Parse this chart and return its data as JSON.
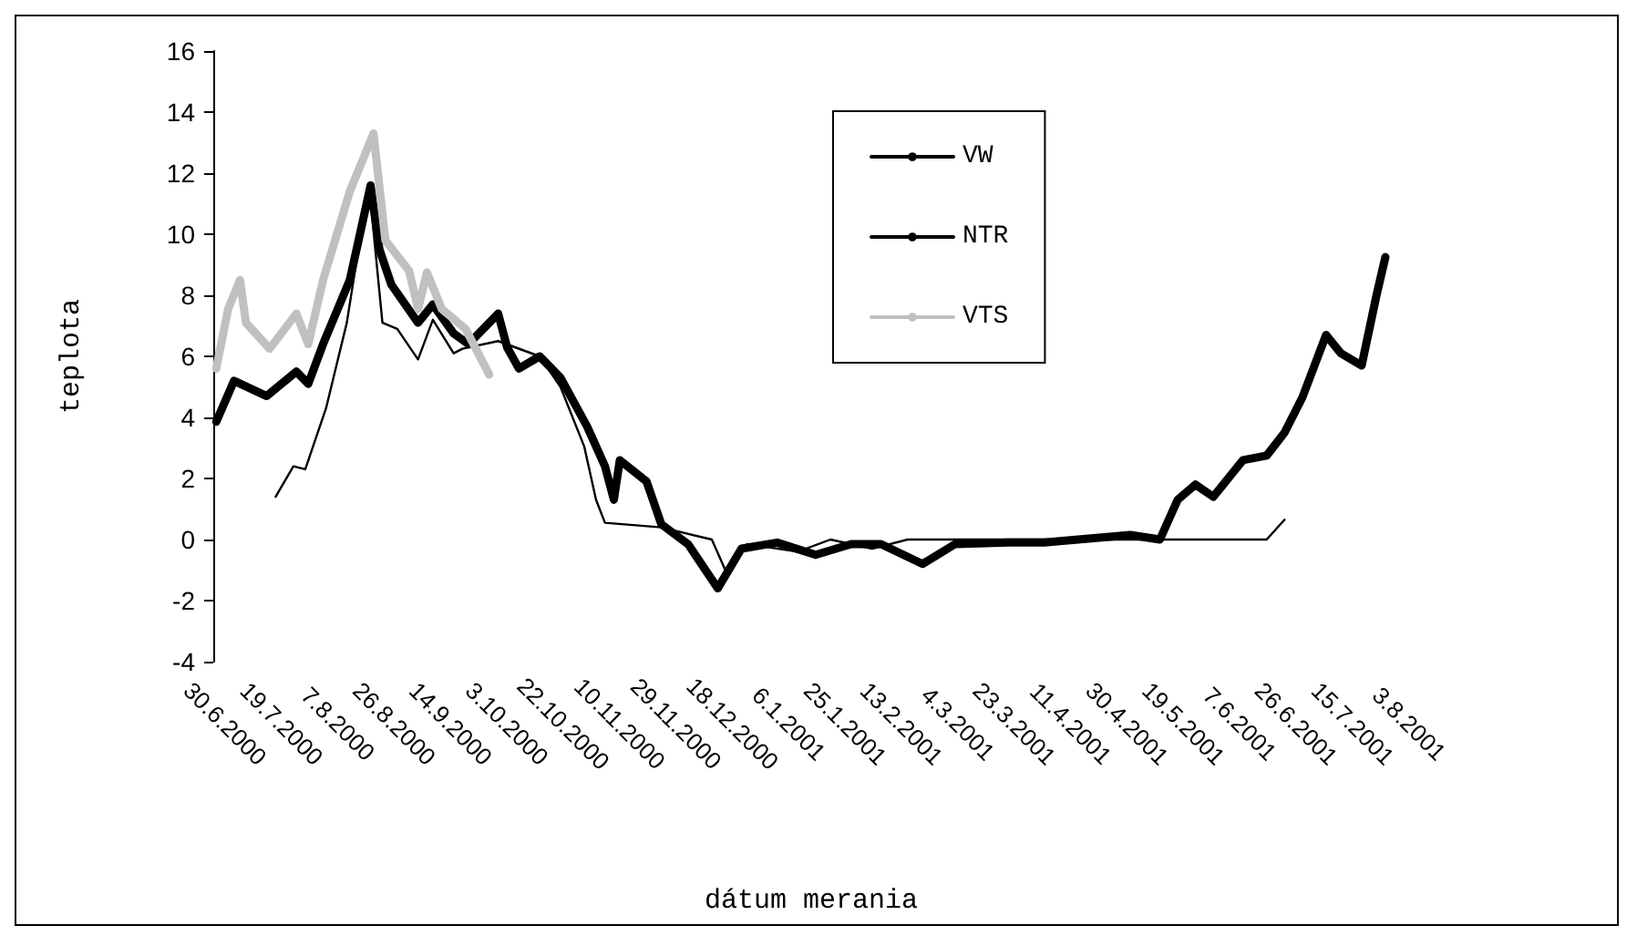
{
  "chart_data": {
    "type": "line",
    "xlabel": "dátum merania",
    "ylabel": "teplota",
    "ylim": [
      -4,
      16
    ],
    "yticks": [
      -4,
      -2,
      0,
      2,
      4,
      6,
      8,
      10,
      12,
      14,
      16
    ],
    "xlim": [
      "2000-06-26",
      "2001-08-03"
    ],
    "xticks": [
      {
        "value": "2000-06-30",
        "label": "30.6.2000"
      },
      {
        "value": "2000-07-19",
        "label": "19.7.2000"
      },
      {
        "value": "2000-08-07",
        "label": "7.8.2000"
      },
      {
        "value": "2000-08-26",
        "label": "26.8.2000"
      },
      {
        "value": "2000-09-14",
        "label": "14.9.2000"
      },
      {
        "value": "2000-10-03",
        "label": "3.10.2000"
      },
      {
        "value": "2000-10-22",
        "label": "22.10.2000"
      },
      {
        "value": "2000-11-10",
        "label": "10.11.2000"
      },
      {
        "value": "2000-11-29",
        "label": "29.11.2000"
      },
      {
        "value": "2000-12-18",
        "label": "18.12.2000"
      },
      {
        "value": "2001-01-06",
        "label": "6.1.2001"
      },
      {
        "value": "2001-01-25",
        "label": "25.1.2001"
      },
      {
        "value": "2001-02-13",
        "label": "13.2.2001"
      },
      {
        "value": "2001-03-04",
        "label": "4.3.2001"
      },
      {
        "value": "2001-03-23",
        "label": "23.3.2001"
      },
      {
        "value": "2001-04-11",
        "label": "11.4.2001"
      },
      {
        "value": "2001-04-30",
        "label": "30.4.2001"
      },
      {
        "value": "2001-05-19",
        "label": "19.5.2001"
      },
      {
        "value": "2001-06-07",
        "label": "7.6.2001"
      },
      {
        "value": "2001-06-26",
        "label": "26.6.2001"
      },
      {
        "value": "2001-07-15",
        "label": "15.7.2001"
      },
      {
        "value": "2001-08-03",
        "label": "3.8.2001"
      }
    ],
    "grid": false,
    "legend": "top right",
    "marker": "none",
    "series": [
      {
        "name": "VW",
        "color": "#000000",
        "x": [
          "2000-07-17",
          "2000-07-23",
          "2000-07-27",
          "2000-08-03",
          "2000-08-10",
          "2000-08-16",
          "2000-08-18",
          "2000-08-22",
          "2000-08-27",
          "2000-09-03",
          "2000-09-08",
          "2000-09-15",
          "2000-09-18",
          "2000-09-30",
          "2000-10-14",
          "2000-10-21",
          "2000-10-29",
          "2000-11-02",
          "2000-11-05",
          "2000-11-24",
          "2000-12-11",
          "2000-12-16",
          "2000-12-19",
          "2000-12-23",
          "2001-01-09",
          "2001-01-20",
          "2001-02-03",
          "2001-02-15",
          "2001-03-10",
          "2001-04-20",
          "2001-05-20",
          "2001-06-16",
          "2001-06-22"
        ],
        "values": [
          1.4,
          2.4,
          2.3,
          4.3,
          7.1,
          10.8,
          11.1,
          7.1,
          6.9,
          5.9,
          7.2,
          6.1,
          6.25,
          6.5,
          6.0,
          5.0,
          3.05,
          1.3,
          0.55,
          0.4,
          0.0,
          -1.1,
          -0.65,
          -0.15,
          -0.4,
          0.0,
          -0.3,
          0.0,
          0.0,
          0.0,
          0.0,
          0.0,
          0.65
        ]
      },
      {
        "name": "NTR",
        "color": "#000000",
        "x": [
          "2000-06-27",
          "2000-07-03",
          "2000-07-14",
          "2000-07-24",
          "2000-07-28",
          "2000-08-02",
          "2000-08-11",
          "2000-08-16",
          "2000-08-18",
          "2000-08-21",
          "2000-08-25",
          "2000-09-03",
          "2000-09-08",
          "2000-09-15",
          "2000-09-20",
          "2000-09-30",
          "2000-10-03",
          "2000-10-07",
          "2000-10-14",
          "2000-10-21",
          "2000-10-30",
          "2000-11-05",
          "2000-11-08",
          "2000-11-10",
          "2000-11-19",
          "2000-11-24",
          "2000-12-03",
          "2000-12-13",
          "2000-12-21",
          "2001-01-02",
          "2001-01-15",
          "2001-01-27",
          "2001-02-06",
          "2001-02-20",
          "2001-03-03",
          "2001-03-21",
          "2001-04-02",
          "2001-05-01",
          "2001-05-11",
          "2001-05-17",
          "2001-05-23",
          "2001-05-29",
          "2001-06-08",
          "2001-06-16",
          "2001-06-22",
          "2001-06-28",
          "2001-07-06",
          "2001-07-11",
          "2001-07-18",
          "2001-07-23",
          "2001-07-26"
        ],
        "values": [
          3.86,
          5.2,
          4.7,
          5.5,
          5.1,
          6.4,
          8.5,
          10.7,
          11.6,
          9.5,
          8.35,
          7.1,
          7.7,
          6.75,
          6.4,
          7.4,
          6.3,
          5.6,
          6.0,
          5.3,
          3.7,
          2.4,
          1.3,
          2.6,
          1.9,
          0.5,
          -0.15,
          -1.6,
          -0.3,
          -0.1,
          -0.5,
          -0.15,
          -0.15,
          -0.8,
          -0.15,
          -0.1,
          -0.1,
          0.15,
          0.0,
          1.3,
          1.8,
          1.4,
          2.6,
          2.75,
          3.5,
          4.65,
          6.7,
          6.1,
          5.7,
          8.0,
          9.25
        ]
      },
      {
        "name": "VTS",
        "color": "#c0c0c0",
        "x": [
          "2000-06-27",
          "2000-07-01",
          "2000-07-05",
          "2000-07-07",
          "2000-07-15",
          "2000-07-24",
          "2000-07-28",
          "2000-08-02",
          "2000-08-11",
          "2000-08-19",
          "2000-08-23",
          "2000-08-31",
          "2000-09-03",
          "2000-09-06",
          "2000-09-11",
          "2000-09-19",
          "2000-09-27"
        ],
        "values": [
          5.6,
          7.55,
          8.5,
          7.1,
          6.25,
          7.4,
          6.4,
          8.5,
          11.4,
          13.3,
          9.8,
          8.8,
          7.55,
          8.75,
          7.55,
          6.9,
          5.4
        ]
      }
    ]
  }
}
